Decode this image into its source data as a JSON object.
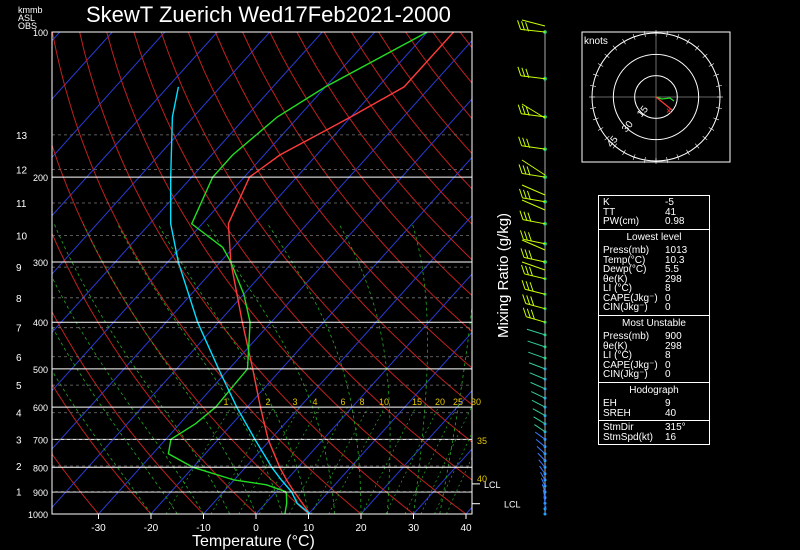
{
  "title": "SkewT Zuerich Wed17Feb2021-2000",
  "corner_labels": [
    "km",
    "mb",
    "ASL",
    "OBS"
  ],
  "mixing_ratio_label": "Mixing Ratio (g/kg)",
  "x_axis_label": "Temperature (°C)",
  "hodograph": {
    "units": "knots",
    "ring_labels": [
      "15",
      "30",
      "45"
    ]
  },
  "colors": {
    "temperature": "#ff3b3b",
    "dewpoint": "#22dd22",
    "parcel": "#00e0ff",
    "isotherm": "#2a3bd6",
    "dry_adiabat": "#c02020",
    "moist_adiabat": "#22aa22",
    "mixing_line": "#22aa22",
    "wind": "#c8ff00",
    "mixing_text": "#e5c800"
  },
  "chart_data": {
    "type": "line",
    "title": "SkewT Zuerich Wed17Feb2021-2000",
    "xlabel": "Temperature (°C)",
    "ylabel": "",
    "x_ticks": [
      -30,
      -20,
      -10,
      0,
      10,
      20,
      30,
      40
    ],
    "pressure_ticks": [
      100,
      200,
      300,
      400,
      500,
      600,
      700,
      800,
      900,
      1000
    ],
    "height_km_ticks": [
      1,
      2,
      3,
      4,
      5,
      6,
      7,
      8,
      9,
      10,
      11,
      12,
      13
    ],
    "mixing_ratio_ticks": [
      "1",
      "2",
      "3",
      "4",
      "6",
      "8",
      "10",
      "15",
      "20",
      "25",
      "30"
    ],
    "mixing_ratio_extra": [
      "35",
      "40"
    ],
    "series": [
      {
        "key": "temperature",
        "points": [
          [
            1000,
            10.3
          ],
          [
            950,
            7
          ],
          [
            900,
            3.5
          ],
          [
            850,
            0
          ],
          [
            800,
            -3.5
          ],
          [
            700,
            -10.5
          ],
          [
            600,
            -17.5
          ],
          [
            500,
            -25.5
          ],
          [
            400,
            -35.5
          ],
          [
            300,
            -48
          ],
          [
            250,
            -55
          ],
          [
            200,
            -59
          ],
          [
            180,
            -57
          ],
          [
            150,
            -50
          ],
          [
            130,
            -45
          ],
          [
            100,
            -45
          ]
        ]
      },
      {
        "key": "dewpoint",
        "points": [
          [
            1000,
            5.5
          ],
          [
            950,
            4
          ],
          [
            900,
            2
          ],
          [
            870,
            -3
          ],
          [
            850,
            -10
          ],
          [
            800,
            -20
          ],
          [
            750,
            -27
          ],
          [
            700,
            -29
          ],
          [
            650,
            -27
          ],
          [
            600,
            -26
          ],
          [
            500,
            -26.5
          ],
          [
            400,
            -34
          ],
          [
            350,
            -40
          ],
          [
            300,
            -48
          ],
          [
            280,
            -52
          ],
          [
            250,
            -62
          ],
          [
            200,
            -66
          ],
          [
            180,
            -66
          ],
          [
            150,
            -64
          ],
          [
            130,
            -60
          ],
          [
            100,
            -50
          ]
        ]
      },
      {
        "key": "parcel",
        "points": [
          [
            1000,
            10.3
          ],
          [
            950,
            6
          ],
          [
            900,
            3
          ],
          [
            850,
            -1
          ],
          [
            800,
            -5
          ],
          [
            700,
            -13
          ],
          [
            600,
            -22
          ],
          [
            500,
            -32
          ],
          [
            400,
            -44
          ],
          [
            300,
            -58
          ],
          [
            250,
            -66
          ],
          [
            200,
            -74
          ],
          [
            150,
            -84
          ],
          [
            130,
            -88
          ]
        ]
      }
    ],
    "lcl_labels": [
      "LCL",
      "LCL"
    ]
  },
  "indices": {
    "top": [
      {
        "k": "K",
        "v": "-5"
      },
      {
        "k": "TT",
        "v": "41"
      },
      {
        "k": "PW(cm)",
        "v": "0.98"
      }
    ],
    "lowest_level": {
      "title": "Lowest level",
      "rows": [
        {
          "k": "Press(mb)",
          "v": "1013"
        },
        {
          "k": "Temp(°C)",
          "v": "10.3"
        },
        {
          "k": "Dewp(°C)",
          "v": "5.5"
        },
        {
          "k": "θe(K)",
          "v": "298"
        },
        {
          "k": "LI (°C)",
          "v": "8"
        },
        {
          "k": "CAPE(Jkg⁻)",
          "v": "0"
        },
        {
          "k": "CIN(Jkg⁻)",
          "v": "0"
        }
      ]
    },
    "most_unstable": {
      "title": "Most Unstable",
      "rows": [
        {
          "k": "Press(mb)",
          "v": "900"
        },
        {
          "k": "θe(K)",
          "v": "298"
        },
        {
          "k": "LI (°C)",
          "v": "8"
        },
        {
          "k": "CAPE(Jkg⁻)",
          "v": "0"
        },
        {
          "k": "CIN(Jkg⁻)",
          "v": "0"
        }
      ]
    },
    "hodograph_box": {
      "title": "Hodograph",
      "rows": [
        {
          "k": "EH",
          "v": "9"
        },
        {
          "k": "SREH",
          "v": "40"
        }
      ],
      "rows2": [
        {
          "k": "StmDir",
          "v": "315°"
        },
        {
          "k": "StmSpd(kt)",
          "v": "16"
        }
      ]
    }
  }
}
